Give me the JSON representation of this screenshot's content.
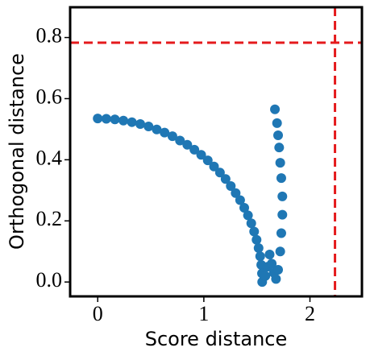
{
  "chart_data": {
    "type": "scatter",
    "xlabel": "Score distance",
    "ylabel": "Orthogonal distance",
    "series": [
      {
        "color": "#1f77b4",
        "x": [
          0,
          0.081,
          0.162,
          0.242,
          0.322,
          0.401,
          0.479,
          0.556,
          0.63,
          0.704,
          0.775,
          0.844,
          0.911,
          0.975,
          1.037,
          1.096,
          1.152,
          1.205,
          1.254,
          1.3,
          1.342,
          1.381,
          1.416,
          1.447,
          1.474,
          1.497,
          1.516,
          1.531,
          1.541,
          1.548,
          1.55,
          1.58,
          1.6,
          1.62,
          1.64,
          1.66,
          1.68,
          1.7,
          1.72,
          1.73,
          1.74,
          1.74,
          1.73,
          1.72,
          1.71,
          1.7,
          1.69,
          1.67
        ],
        "values": [
          0.535,
          0.534,
          0.532,
          0.528,
          0.523,
          0.517,
          0.509,
          0.499,
          0.489,
          0.477,
          0.463,
          0.449,
          0.433,
          0.416,
          0.398,
          0.378,
          0.358,
          0.337,
          0.314,
          0.291,
          0.268,
          0.243,
          0.218,
          0.192,
          0.165,
          0.138,
          0.111,
          0.084,
          0.056,
          0.028,
          0.0,
          0.02,
          0.05,
          0.09,
          0.06,
          0.03,
          0.01,
          0.04,
          0.1,
          0.16,
          0.22,
          0.28,
          0.34,
          0.39,
          0.44,
          0.48,
          0.52,
          0.565
        ]
      }
    ],
    "hline": {
      "value": 0.783,
      "color": "#e41a1c"
    },
    "vline": {
      "value": 2.236,
      "color": "#e41a1c"
    },
    "xlim": [
      -0.26,
      2.49
    ],
    "xticks": [
      0,
      1,
      2
    ],
    "ylim": [
      -0.047,
      0.899
    ],
    "yticks": [
      {
        "value": 0,
        "label": "0.0"
      },
      {
        "value": 0.2,
        "label": "0.2"
      },
      {
        "value": 0.4,
        "label": "0.4"
      },
      {
        "value": 0.6,
        "label": "0.6"
      },
      {
        "value": 0.8,
        "label": "0.8"
      }
    ]
  }
}
